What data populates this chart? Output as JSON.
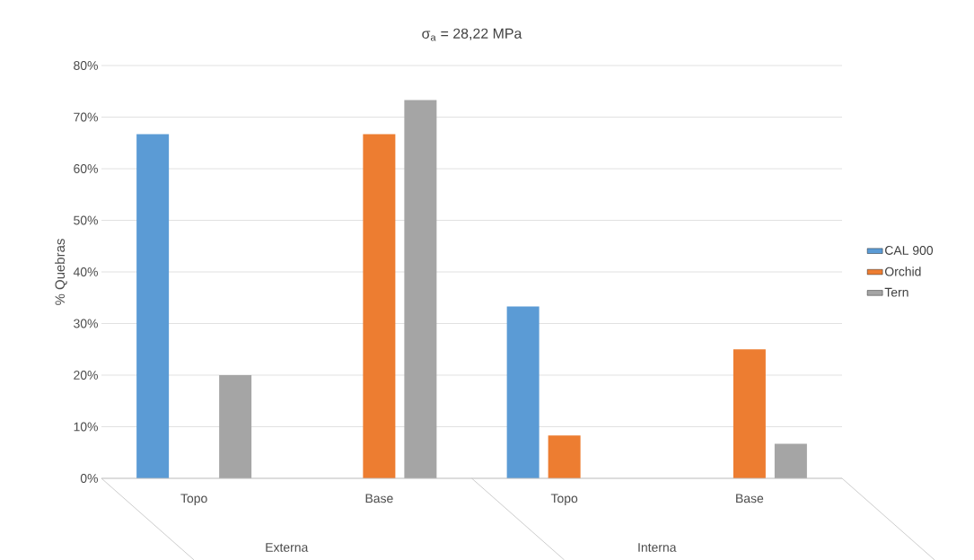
{
  "chart_data": {
    "type": "bar",
    "title": "σ$_{a}$ = 28,22 MPa",
    "ylabel": "% Quebras",
    "categories": [
      "Topo",
      "Base",
      "Topo",
      "Base"
    ],
    "series": [
      {
        "name": "CAL 900",
        "color": "#5b9bd5",
        "values": [
          66.7,
          0,
          33.3,
          0
        ]
      },
      {
        "name": "Orchid",
        "color": "#ed7d31",
        "values": [
          0,
          66.7,
          8.3,
          25
        ]
      },
      {
        "name": "Tern",
        "color": "#a5a5a5",
        "values": [
          20,
          73.3,
          0,
          6.7
        ]
      }
    ],
    "annotations": [
      "Externa",
      "Interna"
    ],
    "ylim": [
      0,
      80
    ],
    "yticks": [
      {
        "value": 0,
        "label": "0%"
      },
      {
        "value": 10,
        "label": "10%"
      },
      {
        "value": 20,
        "label": "20%"
      },
      {
        "value": 30,
        "label": "30%"
      },
      {
        "value": 40,
        "label": "40%"
      },
      {
        "value": 50,
        "label": "50%"
      },
      {
        "value": 60,
        "label": "60%"
      },
      {
        "value": 70,
        "label": "70%"
      },
      {
        "value": 80,
        "label": "80%"
      }
    ],
    "grid": "y",
    "legend": "right"
  }
}
